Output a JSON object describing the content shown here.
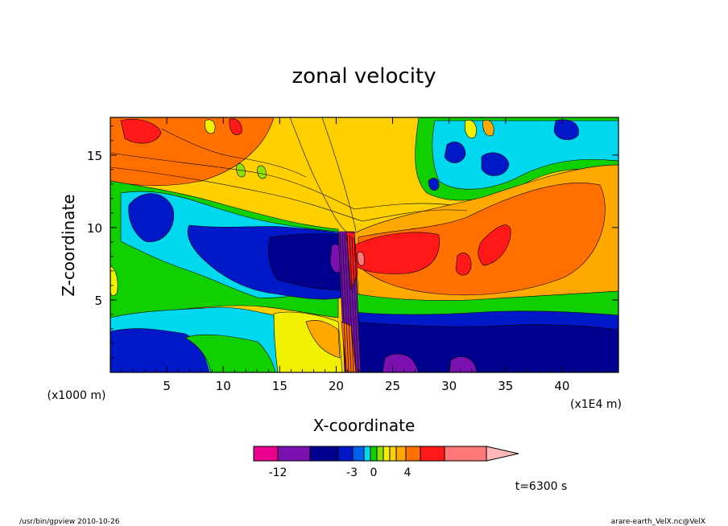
{
  "chart_data": {
    "type": "heatmap",
    "title": "zonal velocity",
    "xlabel": "X-coordinate",
    "ylabel": "Z-coordinate",
    "x_units": "(x1E4 m)",
    "y_units": "(x1000 m)",
    "xlim": [
      0,
      45
    ],
    "ylim": [
      0,
      17.6
    ],
    "x_ticks": [
      "5",
      "10",
      "15",
      "20",
      "25",
      "30",
      "35",
      "40"
    ],
    "y_ticks": [
      "5",
      "10",
      "15"
    ],
    "grid": false,
    "colorbar": {
      "levels": [
        "-12",
        "-3",
        "0",
        "4"
      ],
      "colors": [
        "#e8008c",
        "#7a10b0",
        "#000090",
        "#0018c8",
        "#0060f0",
        "#00d8f0",
        "#10d000",
        "#90e000",
        "#f0f000",
        "#ffd000",
        "#ffa800",
        "#ff7000",
        "#ff1818",
        "#ff7878",
        "#ffb8b8"
      ]
    },
    "regions": [
      {
        "name": "upper-left-jet",
        "value_range": [
          4,
          8
        ],
        "x": [
          0,
          10
        ],
        "z": [
          13,
          17.6
        ]
      },
      {
        "name": "lower-westward-layer",
        "value_range": [
          -9,
          -5
        ],
        "x": [
          22,
          45
        ],
        "z": [
          0,
          3.5
        ]
      },
      {
        "name": "eastward-jet",
        "value_range": [
          3,
          6
        ],
        "x": [
          22,
          40
        ],
        "z": [
          6,
          11
        ]
      },
      {
        "name": "deep-negative-core",
        "value_range": [
          -12,
          -9
        ],
        "x": [
          14.5,
          20
        ],
        "z": [
          6.5,
          9.5
        ]
      },
      {
        "name": "mountain-wave-zone",
        "value_range": [
          -15,
          8
        ],
        "x": [
          20,
          22.5
        ],
        "z": [
          0,
          10
        ]
      }
    ]
  },
  "annotations": {
    "time": "t=6300 s",
    "footer_left": "/usr/bin/gpview   2010-10-26",
    "footer_right": "arare-earth_VelX.nc@VelX"
  }
}
